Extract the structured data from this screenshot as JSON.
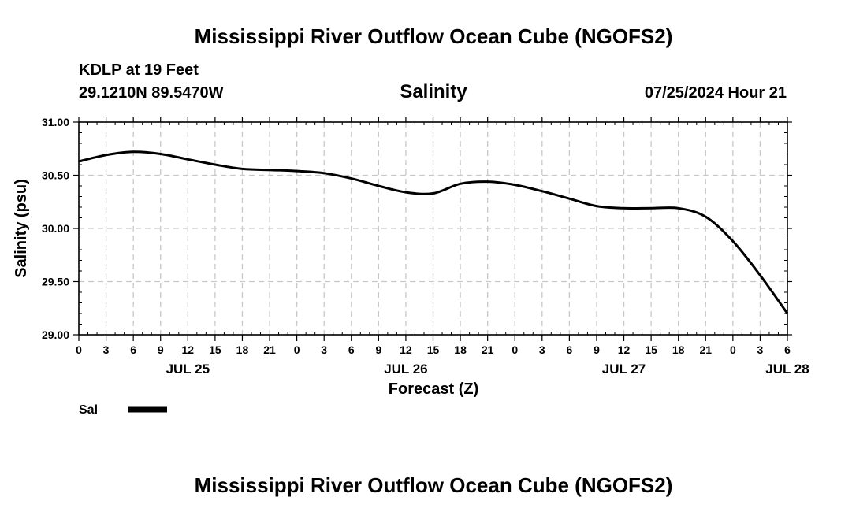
{
  "header": {
    "title": "Mississippi River Outflow Ocean Cube (NGOFS2)",
    "station": "KDLP at 19 Feet",
    "location": "29.1210N  89.5470W",
    "datetime": "07/25/2024 Hour 21"
  },
  "footer": {
    "title": "Mississippi River Outflow Ocean Cube (NGOFS2)"
  },
  "chart_data": {
    "type": "line",
    "title": "Salinity",
    "xlabel": "Forecast (Z)",
    "ylabel": "Salinity (psu)",
    "ylim": [
      29.0,
      31.0
    ],
    "yticks": [
      "29.00",
      "29.50",
      "30.00",
      "30.50",
      "31.00"
    ],
    "xlim_hours": [
      0,
      78
    ],
    "xtick_labels": [
      "0",
      "3",
      "6",
      "9",
      "12",
      "15",
      "18",
      "21",
      "0",
      "3",
      "6",
      "9",
      "12",
      "15",
      "18",
      "21",
      "0",
      "3",
      "6",
      "9",
      "12",
      "15",
      "18",
      "21",
      "0",
      "3",
      "6"
    ],
    "day_labels": [
      {
        "label": "JUL 25",
        "hour": 12
      },
      {
        "label": "JUL 26",
        "hour": 36
      },
      {
        "label": "JUL 27",
        "hour": 60
      },
      {
        "label": "JUL 28",
        "hour": 78
      }
    ],
    "grid": true,
    "legend": "bottom-left",
    "series": [
      {
        "name": "Sal",
        "color": "#000000",
        "x_hours": [
          0,
          3,
          6,
          9,
          12,
          15,
          18,
          21,
          24,
          27,
          30,
          33,
          36,
          39,
          42,
          45,
          48,
          51,
          54,
          57,
          60,
          63,
          66,
          69,
          72,
          75,
          78
        ],
        "values": [
          30.63,
          30.69,
          30.72,
          30.7,
          30.65,
          30.6,
          30.56,
          30.55,
          30.54,
          30.52,
          30.47,
          30.4,
          30.34,
          30.33,
          30.42,
          30.44,
          30.41,
          30.35,
          30.28,
          30.21,
          30.19,
          30.19,
          30.19,
          30.11,
          29.88,
          29.56,
          29.2
        ]
      }
    ]
  }
}
